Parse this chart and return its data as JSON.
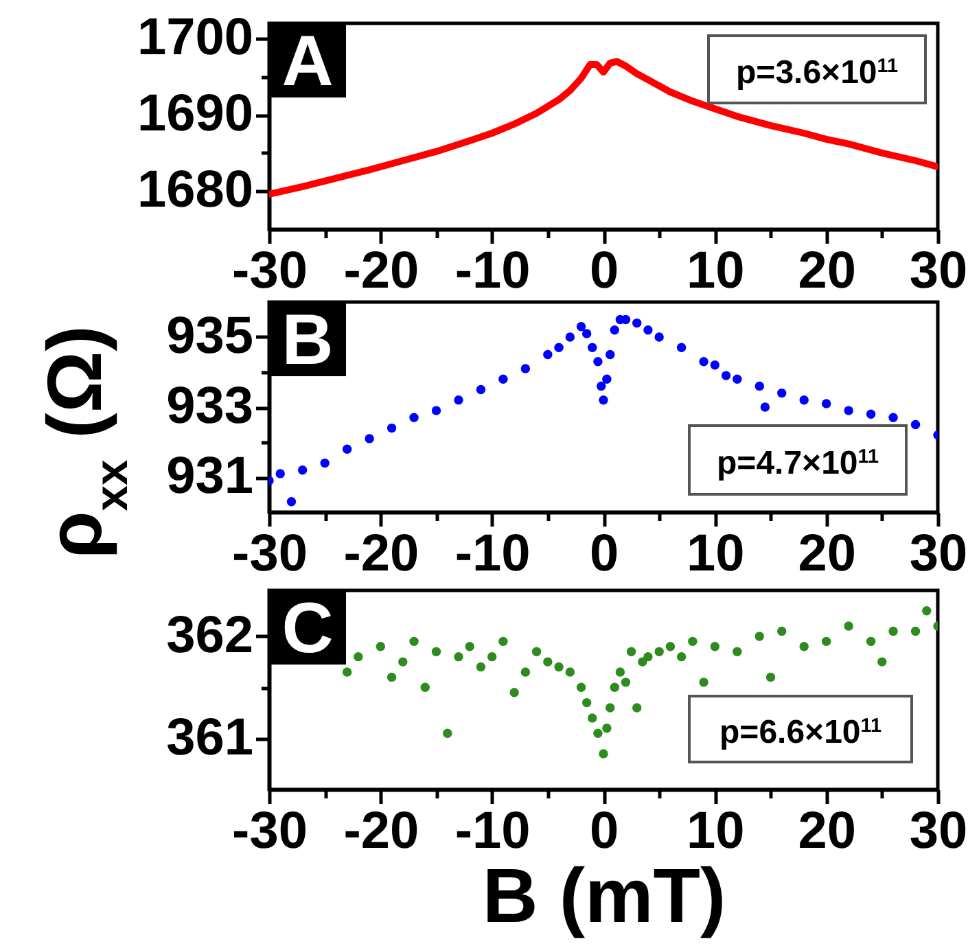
{
  "chart_data": [
    {
      "type": "line",
      "title": "A",
      "annotations": [
        "p=3.6×10$^{11}$"
      ],
      "x": [
        -30,
        -27,
        -24,
        -21,
        -18,
        -15,
        -12,
        -10,
        -8,
        -6,
        -4,
        -3,
        -2,
        -1.2,
        -0.6,
        0,
        0.6,
        1.2,
        2,
        3,
        4,
        5,
        6,
        8,
        10,
        12,
        15,
        18,
        20,
        22,
        25,
        28,
        30
      ],
      "series": [
        {
          "color": "#ff0000",
          "values": [
            1679.6,
            1680.6,
            1681.7,
            1682.8,
            1684.0,
            1685.2,
            1686.6,
            1687.6,
            1688.8,
            1690.2,
            1692.0,
            1693.2,
            1694.8,
            1696.6,
            1696.6,
            1695.6,
            1696.8,
            1697.0,
            1696.4,
            1695.4,
            1694.6,
            1693.8,
            1693.0,
            1691.8,
            1690.8,
            1689.8,
            1688.6,
            1687.6,
            1686.8,
            1686.2,
            1685.0,
            1684.0,
            1683.2
          ]
        }
      ],
      "xlim": [
        -30,
        30
      ],
      "xticks": [
        -30,
        {
          "value": -25,
          "label": null
        },
        -20,
        {
          "value": -15,
          "label": null
        },
        -10,
        {
          "value": -5,
          "label": null
        },
        0,
        {
          "value": 5,
          "label": null
        },
        10,
        {
          "value": 15,
          "label": null
        },
        20,
        {
          "value": 25,
          "label": null
        },
        30
      ],
      "ylim": [
        1675,
        1702
      ],
      "yticks": [
        1680,
        {
          "value": 1685,
          "label": null
        },
        1690,
        {
          "value": 1695,
          "label": null
        },
        1700
      ]
    },
    {
      "type": "scatter",
      "title": "B",
      "annotations": [
        "p=4.7×10$^{11}$"
      ],
      "ylabel": "ρ$_{xx}$ (Ω)",
      "marker": "circle",
      "x": [
        -30,
        -29,
        -28,
        -27,
        -25,
        -23,
        -21,
        -19,
        -17,
        -15,
        -13,
        -11,
        -9,
        -7,
        -5,
        -4,
        -3,
        -2,
        -1.5,
        -1,
        -0.5,
        -0.2,
        0,
        0.3,
        0.6,
        1,
        1.5,
        2,
        3,
        4,
        5,
        7,
        9,
        10,
        11,
        12,
        14,
        14.5,
        16,
        18,
        20,
        22,
        24,
        26,
        28,
        30
      ],
      "series": [
        {
          "color": "#0000ff",
          "values": [
            930.9,
            931.1,
            930.3,
            931.2,
            931.4,
            931.8,
            932.1,
            932.4,
            932.7,
            932.9,
            933.2,
            933.5,
            933.8,
            934.1,
            934.5,
            934.7,
            935.0,
            935.3,
            935.1,
            934.7,
            934.3,
            933.6,
            933.2,
            933.8,
            934.5,
            935.2,
            935.5,
            935.5,
            935.4,
            935.2,
            935.0,
            934.7,
            934.3,
            934.2,
            933.9,
            933.8,
            933.6,
            933.0,
            933.4,
            933.2,
            933.1,
            932.9,
            932.8,
            932.7,
            932.5,
            932.2
          ]
        }
      ],
      "xlim": [
        -30,
        30
      ],
      "xticks": [
        -30,
        {
          "value": -25,
          "label": null
        },
        -20,
        {
          "value": -15,
          "label": null
        },
        -10,
        {
          "value": -5,
          "label": null
        },
        0,
        {
          "value": 5,
          "label": null
        },
        10,
        {
          "value": 15,
          "label": null
        },
        20,
        {
          "value": 25,
          "label": null
        },
        30
      ],
      "ylim": [
        930,
        936
      ],
      "yticks": [
        931,
        {
          "value": 932,
          "label": null
        },
        933,
        {
          "value": 934,
          "label": null
        },
        935
      ]
    },
    {
      "type": "scatter",
      "title": "C",
      "annotations": [
        "p=6.6×10$^{11}$"
      ],
      "xlabel": "B (mT)",
      "marker": "circle",
      "x": [
        -23,
        -22,
        -20,
        -19,
        -18,
        -17,
        -16,
        -15,
        -14,
        -13,
        -12,
        -11,
        -10,
        -9,
        -8,
        -7,
        -6,
        -5,
        -4,
        -3,
        -2,
        -1.5,
        -1,
        -0.5,
        0,
        0.3,
        0.6,
        1,
        1.5,
        2,
        2.5,
        3,
        3.5,
        4,
        5,
        6,
        7,
        8,
        9,
        10,
        12,
        14,
        15,
        16,
        18,
        20,
        22,
        24,
        25,
        26,
        28,
        29,
        30
      ],
      "series": [
        {
          "color": "#2e8b1e",
          "values": [
            361.65,
            361.8,
            361.9,
            361.6,
            361.75,
            361.95,
            361.5,
            361.85,
            361.05,
            361.8,
            361.9,
            361.7,
            361.8,
            361.95,
            361.45,
            361.65,
            361.85,
            361.75,
            361.7,
            361.65,
            361.5,
            361.35,
            361.2,
            361.05,
            360.85,
            361.1,
            361.3,
            361.5,
            361.65,
            361.55,
            361.85,
            361.3,
            361.75,
            361.8,
            361.85,
            361.9,
            361.8,
            361.95,
            361.55,
            361.9,
            361.85,
            362.0,
            361.6,
            362.05,
            361.9,
            361.95,
            362.1,
            361.95,
            361.75,
            362.05,
            362.05,
            362.25,
            362.1
          ]
        }
      ],
      "xlim": [
        -30,
        30
      ],
      "xticks": [
        -30,
        {
          "value": -25,
          "label": null
        },
        -20,
        {
          "value": -15,
          "label": null
        },
        -10,
        {
          "value": -5,
          "label": null
        },
        0,
        {
          "value": 5,
          "label": null
        },
        10,
        {
          "value": 15,
          "label": null
        },
        20,
        {
          "value": 25,
          "label": null
        },
        30
      ],
      "ylim": [
        360.5,
        362.45
      ],
      "yticks": [
        361,
        {
          "value": 361.5,
          "label": null
        },
        362
      ]
    }
  ]
}
